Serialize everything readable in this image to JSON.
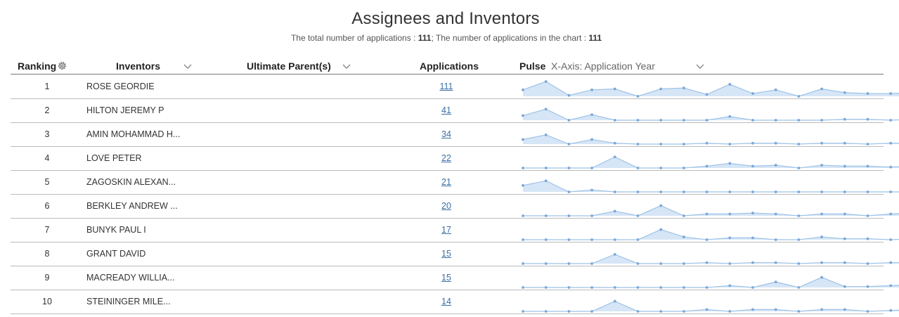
{
  "header": {
    "title": "Assignees and Inventors",
    "subtitle_prefix": "The total number of applications : ",
    "total": "111",
    "subtitle_mid": "; The number of applications in the chart : ",
    "in_chart": "111"
  },
  "columns": {
    "ranking": "Ranking",
    "inventors": "Inventors",
    "ultimate_parent": "Ultimate Parent(s)",
    "applications": "Applications",
    "pulse": "Pulse",
    "xaxis": "X-Axis: Application Year"
  },
  "colors": {
    "pulse_fill": "#d6e6f7",
    "pulse_line": "#9ec2e6",
    "pulse_dot": "#7aa8d8",
    "link": "#3a6ea5"
  },
  "rows": [
    {
      "rank": "1",
      "inventor": "ROSE GEORDIE",
      "applications": "111",
      "pulse": [
        7,
        16,
        1,
        7,
        8,
        0,
        8,
        9,
        2,
        13,
        3,
        7,
        0,
        8,
        4,
        3,
        3,
        4
      ]
    },
    {
      "rank": "2",
      "inventor": "HILTON JEREMY P",
      "applications": "41",
      "pulse": [
        5,
        12,
        0,
        6,
        0,
        0,
        0,
        0,
        0,
        4,
        0,
        0,
        0,
        0,
        1,
        1,
        0,
        1
      ]
    },
    {
      "rank": "3",
      "inventor": "AMIN MOHAMMAD H...",
      "applications": "34",
      "pulse": [
        5,
        10,
        0,
        5,
        1,
        0,
        0,
        0,
        1,
        0,
        1,
        1,
        0,
        1,
        1,
        0,
        1,
        1
      ]
    },
    {
      "rank": "4",
      "inventor": "LOVE PETER",
      "applications": "22",
      "pulse": [
        0,
        0,
        0,
        0,
        12,
        0,
        0,
        0,
        2,
        5,
        2,
        3,
        0,
        3,
        2,
        2,
        1,
        2
      ]
    },
    {
      "rank": "5",
      "inventor": "ZAGOSKIN ALEXAN...",
      "applications": "21",
      "pulse": [
        7,
        12,
        0,
        2,
        0,
        0,
        0,
        0,
        0,
        0,
        0,
        0,
        0,
        0,
        0,
        0,
        0,
        0
      ]
    },
    {
      "rank": "6",
      "inventor": "BERKLEY ANDREW ...",
      "applications": "20",
      "pulse": [
        0,
        0,
        0,
        0,
        5,
        0,
        11,
        0,
        2,
        2,
        3,
        2,
        0,
        2,
        2,
        0,
        2,
        3
      ]
    },
    {
      "rank": "7",
      "inventor": "BUNYK PAUL I",
      "applications": "17",
      "pulse": [
        0,
        0,
        0,
        0,
        0,
        0,
        11,
        3,
        0,
        2,
        2,
        0,
        0,
        3,
        1,
        1,
        0,
        1
      ]
    },
    {
      "rank": "8",
      "inventor": "GRANT DAVID",
      "applications": "15",
      "pulse": [
        0,
        0,
        0,
        0,
        10,
        0,
        0,
        0,
        1,
        0,
        1,
        1,
        0,
        1,
        1,
        0,
        1,
        1
      ]
    },
    {
      "rank": "9",
      "inventor": "MACREADY WILLIA...",
      "applications": "15",
      "pulse": [
        0,
        0,
        0,
        0,
        0,
        0,
        0,
        0,
        0,
        2,
        0,
        6,
        0,
        11,
        1,
        1,
        2,
        3
      ]
    },
    {
      "rank": "10",
      "inventor": "STEININGER MILE...",
      "applications": "14",
      "pulse": [
        0,
        0,
        0,
        0,
        11,
        0,
        0,
        0,
        2,
        0,
        2,
        2,
        0,
        2,
        2,
        0,
        1,
        2
      ]
    }
  ]
}
